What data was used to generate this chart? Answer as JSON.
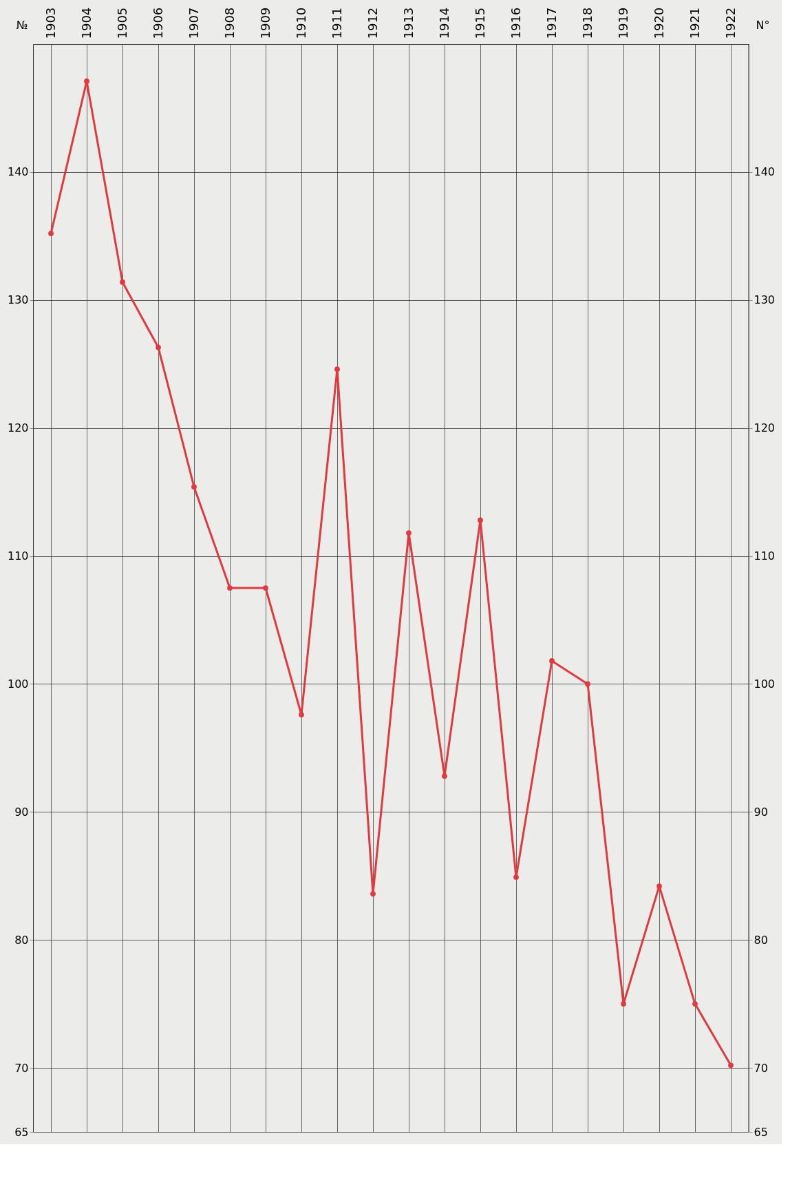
{
  "chart_data": {
    "type": "line",
    "ylabel": "№",
    "y2label": "N°",
    "categories": [
      "1903",
      "1904",
      "1905",
      "1906",
      "1907",
      "1908",
      "1909",
      "1910",
      "1911",
      "1912",
      "1913",
      "1914",
      "1915",
      "1916",
      "1917",
      "1918",
      "1919",
      "1920",
      "1921",
      "1922"
    ],
    "series": [
      {
        "color": "#e0393e",
        "values": [
          135.2,
          147.1,
          131.4,
          126.3,
          115.4,
          107.5,
          107.5,
          97.6,
          124.6,
          83.6,
          111.8,
          92.8,
          112.8,
          84.9,
          101.8,
          100,
          75.0,
          84.2,
          75.0,
          70.2
        ]
      }
    ],
    "ylim": [
      65,
      150
    ],
    "yticks": [
      65,
      70,
      80,
      90,
      100,
      110,
      120,
      130,
      140
    ],
    "y2lim": [
      65,
      150
    ],
    "y2ticks": [
      65,
      70,
      80,
      90,
      100,
      110,
      120,
      130,
      140
    ],
    "grid": true,
    "marker": "circle",
    "line_style": "solid"
  }
}
